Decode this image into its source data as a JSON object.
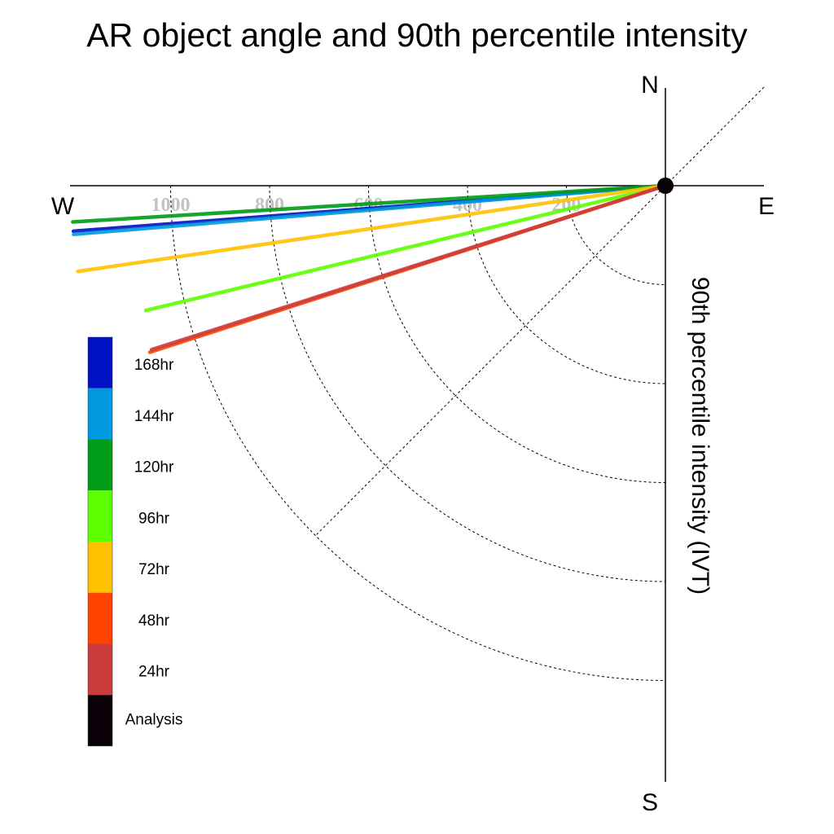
{
  "chart_data": {
    "type": "line",
    "title": "AR object angle and 90th percentile intensity",
    "ylabel": "90th percentile intensity (IVT)",
    "directions": {
      "north": "N",
      "south": "S",
      "east": "E",
      "west": "W"
    },
    "radial_ticks": [
      200,
      400,
      600,
      800,
      1000
    ],
    "radial_lim": [
      0,
      1200
    ],
    "grid": true,
    "legend_position": "left",
    "series": [
      {
        "name": "168hr",
        "color": "#0012c3",
        "angle_deg": 265.6,
        "intensity": 1200
      },
      {
        "name": "144hr",
        "color": "#0098de",
        "angle_deg": 265.3,
        "intensity": 1200
      },
      {
        "name": "120hr",
        "color": "#009c18",
        "angle_deg": 266.5,
        "intensity": 1200
      },
      {
        "name": "96hr",
        "color": "#5cff00",
        "angle_deg": 256.5,
        "intensity": 1080
      },
      {
        "name": "72hr",
        "color": "#ffc200",
        "angle_deg": 261.7,
        "intensity": 1200
      },
      {
        "name": "48hr",
        "color": "#ff4200",
        "angle_deg": 252.1,
        "intensity": 1095
      },
      {
        "name": "24hr",
        "color": "#cc3c3c",
        "angle_deg": 252.3,
        "intensity": 1090
      },
      {
        "name": "Analysis",
        "color": "#0a0008"
      }
    ]
  }
}
